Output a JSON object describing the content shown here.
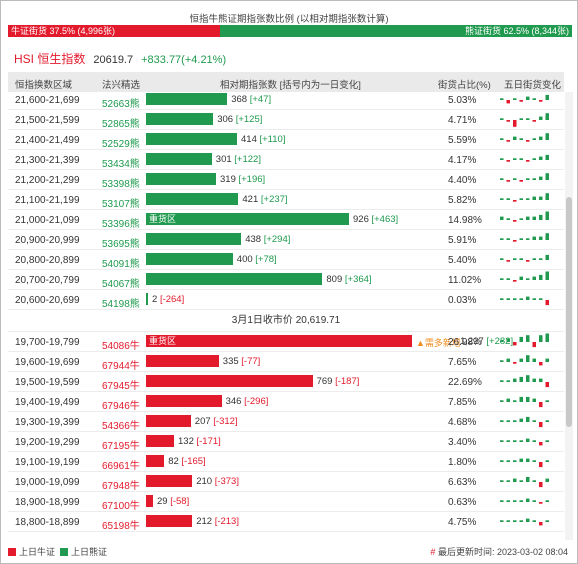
{
  "title": "恒指牛熊证期指张数比例 (以相对期指张数计算)",
  "ratio": {
    "bull_label": "牛证街货 37.5% (4,996张)",
    "bull_fraction": 0.375,
    "bear_label": "熊证街货 62.5% (8,344张)"
  },
  "index": {
    "name": "HSI 恒生指数",
    "value": "20619.7",
    "change": "+833.77(+4.21%)"
  },
  "headers": {
    "range": "恒指换数区域",
    "code": "法兴精选",
    "rel": "相对期指张数 [括号内为一日变化]",
    "pct": "街货占比(%)",
    "five": "五日街货变化"
  },
  "mid_label": "3月1日收市价 20,619.71",
  "tag_text": "▲需多新增",
  "bear_rows": [
    {
      "range": "21,600-21,699",
      "code": "52663熊",
      "count": "368",
      "delta": "+47",
      "pct": "5.03%",
      "frac": 0.058,
      "zone": "",
      "mini": [
        1,
        -2,
        1,
        -1,
        2,
        1,
        -1,
        3
      ]
    },
    {
      "range": "21,500-21,599",
      "code": "52865熊",
      "count": "306",
      "delta": "+125",
      "pct": "4.71%",
      "frac": 0.048,
      "zone": "",
      "mini": [
        1,
        -1,
        -4,
        1,
        1,
        -1,
        2,
        4
      ]
    },
    {
      "range": "21,400-21,499",
      "code": "52529熊",
      "count": "414",
      "delta": "+110",
      "pct": "5.59%",
      "frac": 0.065,
      "zone": "",
      "mini": [
        1,
        -1,
        2,
        1,
        -1,
        1,
        2,
        4
      ]
    },
    {
      "range": "21,300-21,399",
      "code": "53434熊",
      "count": "301",
      "delta": "+122",
      "pct": "4.17%",
      "frac": 0.047,
      "zone": "",
      "mini": [
        1,
        -1,
        1,
        1,
        -1,
        1,
        2,
        3
      ]
    },
    {
      "range": "21,200-21,299",
      "code": "53398熊",
      "count": "319",
      "delta": "+196",
      "pct": "4.40%",
      "frac": 0.05,
      "zone": "",
      "mini": [
        1,
        -1,
        1,
        -1,
        1,
        1,
        2,
        4
      ]
    },
    {
      "range": "21,100-21,199",
      "code": "53107熊",
      "count": "421",
      "delta": "+237",
      "pct": "5.82%",
      "frac": 0.066,
      "zone": "",
      "mini": [
        1,
        1,
        -1,
        1,
        1,
        2,
        2,
        4
      ]
    },
    {
      "range": "21,000-21,099",
      "code": "53396熊",
      "count": "926",
      "delta": "+463",
      "pct": "14.98%",
      "frac": 0.145,
      "zone": "重货区",
      "mini": [
        2,
        1,
        -1,
        1,
        2,
        2,
        3,
        5
      ]
    },
    {
      "range": "20,900-20,999",
      "code": "53695熊",
      "count": "438",
      "delta": "+294",
      "pct": "5.91%",
      "frac": 0.068,
      "zone": "",
      "mini": [
        1,
        1,
        -1,
        1,
        1,
        2,
        2,
        4
      ]
    },
    {
      "range": "20,800-20,899",
      "code": "54091熊",
      "count": "400",
      "delta": "+78",
      "pct": "5.40%",
      "frac": 0.062,
      "zone": "",
      "mini": [
        1,
        -1,
        1,
        1,
        -1,
        1,
        1,
        3
      ]
    },
    {
      "range": "20,700-20,799",
      "code": "54067熊",
      "count": "809",
      "delta": "+364",
      "pct": "11.02%",
      "frac": 0.126,
      "zone": "",
      "mini": [
        1,
        1,
        -1,
        2,
        1,
        2,
        3,
        5
      ]
    },
    {
      "range": "20,600-20,699",
      "code": "54198熊",
      "count": "2",
      "delta": "-264",
      "pct": "0.03%",
      "frac": 0.001,
      "zone": "",
      "mini": [
        1,
        1,
        1,
        1,
        2,
        1,
        1,
        -3
      ]
    }
  ],
  "bull_rows": [
    {
      "range": "19,700-19,799",
      "code": "54086牛",
      "count": "1,227",
      "delta": "+282",
      "pct": "26.98%",
      "frac": 0.19,
      "zone": "重货区",
      "tag": true,
      "mini": [
        1,
        2,
        -2,
        3,
        4,
        -3,
        4,
        5
      ]
    },
    {
      "range": "19,600-19,699",
      "code": "67944牛",
      "count": "335",
      "delta": "-77",
      "pct": "7.65%",
      "frac": 0.052,
      "zone": "",
      "mini": [
        1,
        2,
        -1,
        2,
        4,
        2,
        -2,
        2
      ]
    },
    {
      "range": "19,500-19,599",
      "code": "67945牛",
      "count": "769",
      "delta": "-187",
      "pct": "22.69%",
      "frac": 0.119,
      "zone": "",
      "mini": [
        1,
        1,
        2,
        3,
        4,
        2,
        2,
        -3
      ]
    },
    {
      "range": "19,400-19,499",
      "code": "67946牛",
      "count": "346",
      "delta": "-296",
      "pct": "7.85%",
      "frac": 0.054,
      "zone": "",
      "mini": [
        1,
        2,
        1,
        3,
        3,
        2,
        -3,
        1
      ]
    },
    {
      "range": "19,300-19,399",
      "code": "54366牛",
      "count": "207",
      "delta": "-312",
      "pct": "4.68%",
      "frac": 0.032,
      "zone": "",
      "mini": [
        1,
        1,
        1,
        2,
        3,
        1,
        -3,
        1
      ]
    },
    {
      "range": "19,200-19,299",
      "code": "67195牛",
      "count": "132",
      "delta": "-171",
      "pct": "3.40%",
      "frac": 0.02,
      "zone": "",
      "mini": [
        1,
        1,
        1,
        1,
        2,
        1,
        -2,
        1
      ]
    },
    {
      "range": "19,100-19,199",
      "code": "66961牛",
      "count": "82",
      "delta": "-165",
      "pct": "1.80%",
      "frac": 0.013,
      "zone": "",
      "mini": [
        1,
        1,
        1,
        2,
        2,
        1,
        -3,
        1
      ]
    },
    {
      "range": "19,000-19,099",
      "code": "67948牛",
      "count": "210",
      "delta": "-373",
      "pct": "6.63%",
      "frac": 0.033,
      "zone": "",
      "mini": [
        1,
        1,
        2,
        1,
        3,
        1,
        -3,
        2
      ]
    },
    {
      "range": "18,900-18,999",
      "code": "67100牛",
      "count": "29",
      "delta": "-58",
      "pct": "0.63%",
      "frac": 0.005,
      "zone": "",
      "mini": [
        1,
        1,
        1,
        1,
        2,
        1,
        -1,
        1
      ]
    },
    {
      "range": "18,800-18,899",
      "code": "65198牛",
      "count": "212",
      "delta": "-213",
      "pct": "4.75%",
      "frac": 0.033,
      "zone": "",
      "mini": [
        1,
        1,
        1,
        1,
        2,
        1,
        -2,
        1
      ]
    }
  ],
  "legend": {
    "bull": "上日牛证",
    "bear": "上日熊证"
  },
  "updated": "最后更新时间: 2023-03-02 08:04",
  "colors": {
    "bull": "#e31a2c",
    "bear": "#1f9a4e"
  }
}
